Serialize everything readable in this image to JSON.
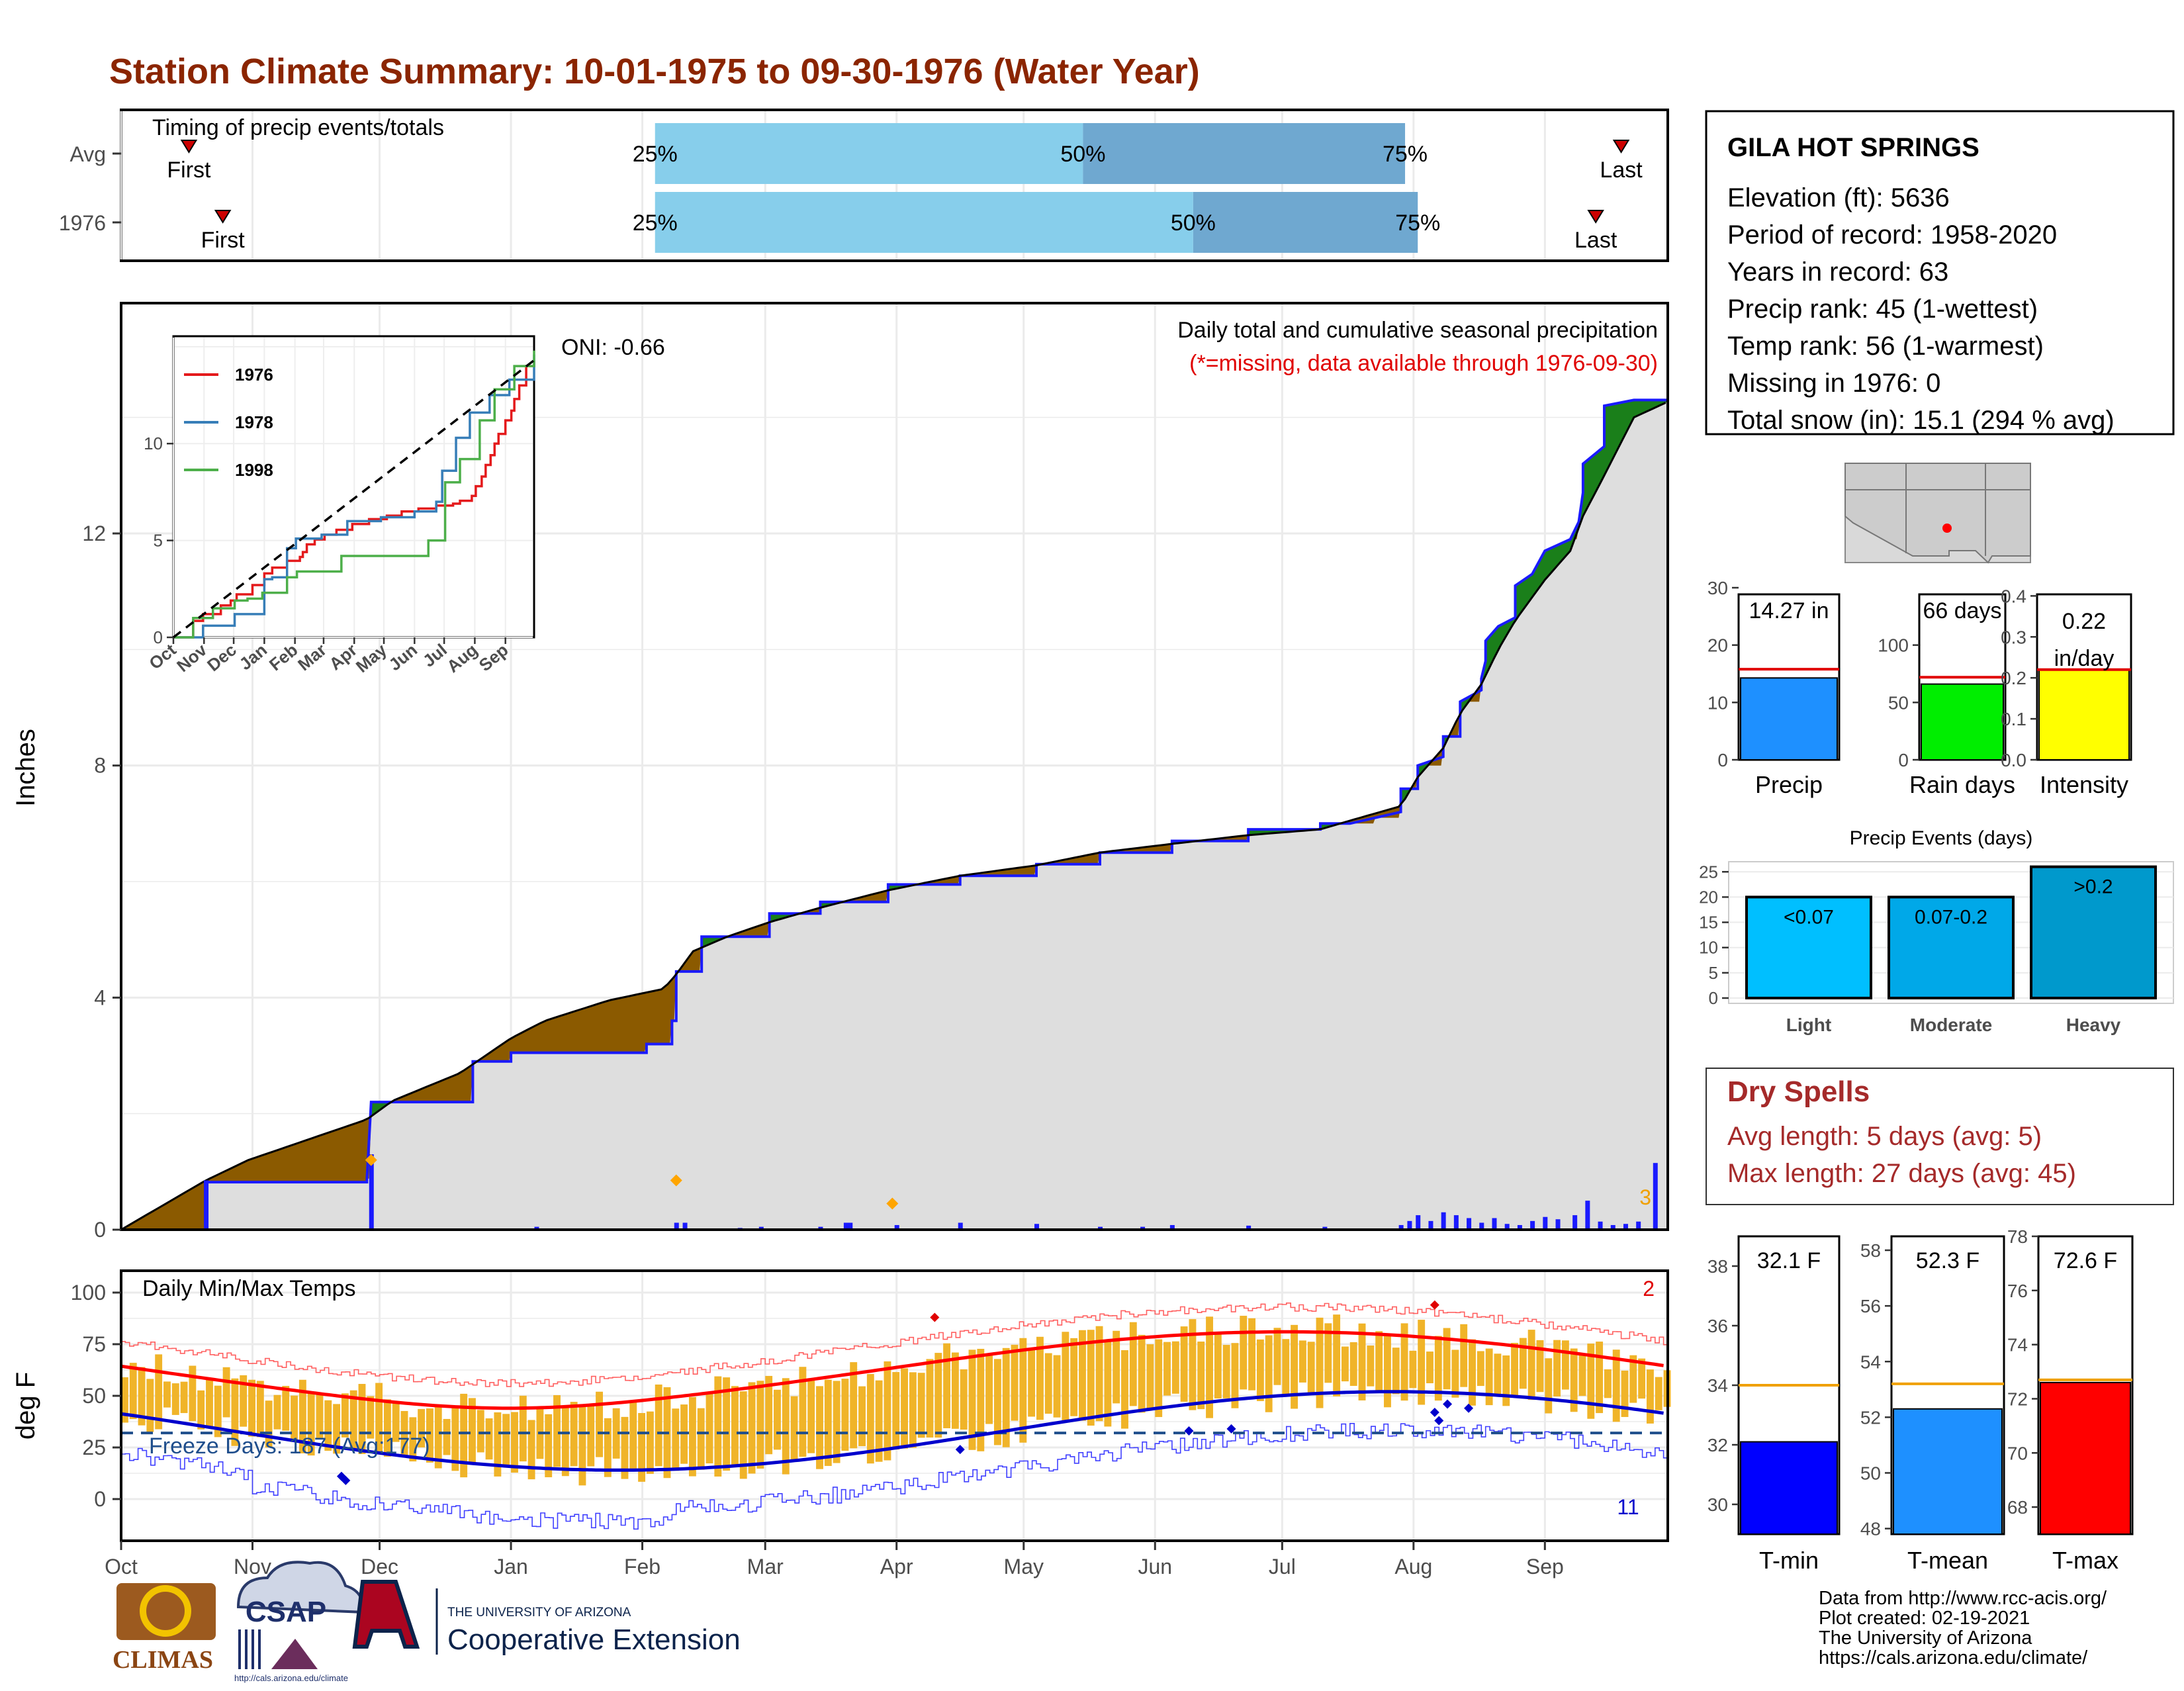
{
  "title": "Station Climate Summary: 10-01-1975 to 09-30-1976 (Water Year)",
  "colors": {
    "title": "#8b2500",
    "precip_fill": "#dedede",
    "above": "#1a7f1a",
    "below": "#8b5a00",
    "bar": "#1a1aff",
    "tmax": "#ff0000",
    "tmin": "#0000cc",
    "range": "#f0b429",
    "freeze": "#1f4e8c"
  },
  "timing": {
    "title": "Timing of precip events/totals",
    "rows": [
      {
        "label": "Avg",
        "first_label": "First",
        "last_label": "Last",
        "first_day": 16,
        "last_day": 354,
        "p25_day": 126,
        "p50_day": 227,
        "p75_day": 303,
        "p25": "25%",
        "p50": "50%",
        "p75": "75%"
      },
      {
        "label": "1976",
        "first_label": "First",
        "last_label": "Last",
        "first_day": 24,
        "last_day": 348,
        "p25_day": 126,
        "p50_day": 253,
        "p75_day": 306,
        "p25": "25%",
        "p50": "50%",
        "p75": "75%"
      }
    ]
  },
  "precip": {
    "ylabel": "Inches",
    "label_top": "Daily total and cumulative seasonal precipitation",
    "label_missing": "(*=missing, data available through 1976-09-30)",
    "oni": "ONI: -0.66",
    "corner_count": "3",
    "yticks": [
      0,
      4,
      8,
      12
    ]
  },
  "inset": {
    "legend": [
      "1976",
      "1978",
      "1998"
    ],
    "series_colors": [
      "#e41a1c",
      "#377eb8",
      "#4daf4a"
    ],
    "yticks": [
      0,
      5,
      10
    ],
    "xticks": [
      "Oct",
      "Nov",
      "Dec",
      "Jan",
      "Feb",
      "Mar",
      "Apr",
      "May",
      "Jun",
      "Jul",
      "Aug",
      "Sep"
    ]
  },
  "temps": {
    "label": "Daily Min/Max Temps",
    "ylabel": "deg F",
    "freeze_text": "Freeze Days: 187 (Avg:177)",
    "count_top": "2",
    "count_bottom": "11",
    "yticks": [
      0,
      25,
      50,
      75,
      100
    ],
    "freeze_line": 32
  },
  "months": [
    "Oct",
    "Nov",
    "Dec",
    "Jan",
    "Feb",
    "Mar",
    "Apr",
    "May",
    "Jun",
    "Jul",
    "Aug",
    "Sep"
  ],
  "station": {
    "name": "GILA HOT SPRINGS",
    "lines": [
      "Elevation (ft): 5636",
      "Period of record: 1958-2020",
      "Years in record: 63",
      "Precip rank: 45 (1-wettest)",
      "Temp rank: 56 (1-warmest)",
      "Missing in 1976: 0",
      "Total snow (in): 15.1 (294 % avg)"
    ]
  },
  "summary_bars": [
    {
      "label": "Precip",
      "value": 14.27,
      "avg": 15.8,
      "value_text": "14.27 in",
      "ymax": 30,
      "yticks": [
        0,
        10,
        20,
        30
      ],
      "color": "#1e90ff"
    },
    {
      "label": "Rain days",
      "value": 66,
      "avg": 72,
      "value_text": "66 days",
      "ymax": 150,
      "yticks": [
        0,
        50,
        100
      ],
      "color": "#00ee00"
    },
    {
      "label": "Intensity",
      "value": 0.22,
      "avg": 0.22,
      "value_text": "0.22",
      "value_text2": "in/day",
      "ymax": 0.42,
      "yticks": [
        "0.0",
        "0.1",
        "0.2",
        "0.3",
        "0.4"
      ],
      "color": "#ffff00"
    }
  ],
  "events": {
    "title": "Precip Events (days)",
    "yticks": [
      0,
      5,
      10,
      15,
      20,
      25
    ],
    "bars": [
      {
        "label": "Light",
        "value": 20,
        "text": "<0.07",
        "color": "#00bfff"
      },
      {
        "label": "Moderate",
        "value": 20,
        "text": "0.07-0.2",
        "color": "#00a8e8"
      },
      {
        "label": "Heavy",
        "value": 26,
        "text": ">0.2",
        "color": "#0099cc"
      }
    ]
  },
  "dry_spells": {
    "title": "Dry Spells",
    "avg": "Avg length: 5 days (avg: 5)",
    "max": "Max length: 27 days (avg: 45)"
  },
  "temp_bars": [
    {
      "label": "T-min",
      "value": 32.1,
      "avg": 34.0,
      "text": "32.1 F",
      "ymin": 29,
      "ymax": 39,
      "yticks": [
        30,
        32,
        34,
        36,
        38
      ],
      "color": "#0000ff"
    },
    {
      "label": "T-mean",
      "value": 52.3,
      "avg": 53.2,
      "text": "52.3 F",
      "ymin": 47.8,
      "ymax": 58.5,
      "yticks": [
        48,
        50,
        52,
        54,
        56,
        58
      ],
      "color": "#1e90ff"
    },
    {
      "label": "T-max",
      "value": 72.6,
      "avg": 72.7,
      "text": "72.6 F",
      "ymin": 67,
      "ymax": 78,
      "yticks": [
        68,
        70,
        72,
        74,
        76,
        78
      ],
      "color": "#ff0000"
    }
  ],
  "credits": [
    "Data from http://www.rcc-acis.org/",
    "Plot created: 02-19-2021",
    "The University of Arizona",
    "https://cals.arizona.edu/climate/"
  ],
  "logos": {
    "climas": "CLIMAS",
    "csap": "CSAP",
    "csap_url": "http://cals.arizona.edu/climate",
    "ua_small": "THE UNIVERSITY OF ARIZONA",
    "ua_big": "Cooperative Extension"
  }
}
